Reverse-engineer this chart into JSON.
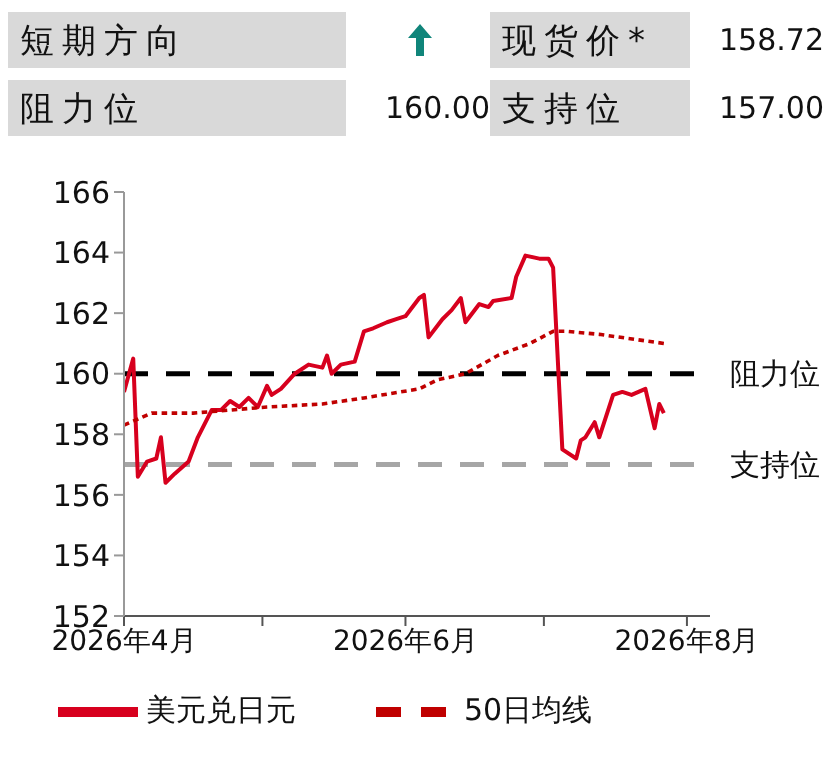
{
  "chart_data": [
    {
      "type": "other",
      "annotations": [
        "短期方向",
        "现货价*",
        "158.72",
        "阻力位",
        "160.00",
        "支持位",
        "157.00"
      ]
    },
    {
      "type": "line",
      "ylim": [
        152,
        166
      ],
      "yticks": [
        152,
        154,
        156,
        158,
        160,
        162,
        164,
        166
      ],
      "xlim": [
        "2026-04-01",
        "2026-08-06"
      ],
      "xticks": [
        {
          "value": "2026-04-01",
          "label": "2026年4月"
        },
        {
          "value": "2026-05-01",
          "label": null
        },
        {
          "value": "2026-06-01",
          "label": "2026年6月"
        },
        {
          "value": "2026-07-01",
          "label": null
        },
        {
          "value": "2026-08-01",
          "label": "2026年8月"
        }
      ],
      "grid": false,
      "legend": "bottom",
      "marker": "none",
      "series": [
        {
          "name": "美元兑日元",
          "color": "#d7001e",
          "line_style": "solid",
          "x": [
            "2026-04-01",
            "2026-04-03",
            "2026-04-04",
            "2026-04-06",
            "2026-04-08",
            "2026-04-09",
            "2026-04-10",
            "2026-04-12",
            "2026-04-15",
            "2026-04-17",
            "2026-04-20",
            "2026-04-22",
            "2026-04-24",
            "2026-04-26",
            "2026-04-28",
            "2026-04-30",
            "2026-05-02",
            "2026-05-03",
            "2026-05-05",
            "2026-05-08",
            "2026-05-11",
            "2026-05-14",
            "2026-05-15",
            "2026-05-16",
            "2026-05-18",
            "2026-05-21",
            "2026-05-23",
            "2026-05-25",
            "2026-05-28",
            "2026-05-30",
            "2026-06-01",
            "2026-06-04",
            "2026-06-05",
            "2026-06-06",
            "2026-06-09",
            "2026-06-11",
            "2026-06-13",
            "2026-06-14",
            "2026-06-17",
            "2026-06-19",
            "2026-06-20",
            "2026-06-24",
            "2026-06-25",
            "2026-06-27",
            "2026-06-30",
            "2026-07-02",
            "2026-07-03",
            "2026-07-05",
            "2026-07-08",
            "2026-07-09",
            "2026-07-10",
            "2026-07-12",
            "2026-07-13",
            "2026-07-16",
            "2026-07-18",
            "2026-07-20",
            "2026-07-23",
            "2026-07-25",
            "2026-07-26",
            "2026-07-27"
          ],
          "values": [
            159.4,
            160.5,
            156.6,
            157.1,
            157.2,
            157.9,
            156.4,
            156.7,
            157.1,
            157.9,
            158.8,
            158.8,
            159.1,
            158.9,
            159.2,
            158.9,
            159.6,
            159.3,
            159.5,
            160.0,
            160.3,
            160.2,
            160.6,
            160.0,
            160.3,
            160.4,
            161.4,
            161.5,
            161.7,
            161.8,
            161.9,
            162.5,
            162.6,
            161.2,
            161.8,
            162.1,
            162.5,
            161.7,
            162.3,
            162.2,
            162.4,
            162.5,
            163.2,
            163.9,
            163.8,
            163.8,
            163.5,
            157.5,
            157.2,
            157.8,
            157.9,
            158.4,
            157.9,
            159.3,
            159.4,
            159.3,
            159.5,
            158.2,
            159.0,
            158.7
          ]
        },
        {
          "name": "50日均线",
          "color": "#c00000",
          "line_style": "dashed",
          "x": [
            "2026-04-01",
            "2026-04-04",
            "2026-04-07",
            "2026-04-16",
            "2026-05-02",
            "2026-05-14",
            "2026-05-23",
            "2026-06-04",
            "2026-06-08",
            "2026-06-14",
            "2026-06-21",
            "2026-06-28",
            "2026-07-03",
            "2026-07-06",
            "2026-07-13",
            "2026-07-27"
          ],
          "values": [
            158.3,
            158.5,
            158.7,
            158.7,
            158.9,
            159.0,
            159.2,
            159.5,
            159.8,
            160.0,
            160.6,
            161.0,
            161.4,
            161.4,
            161.3,
            161.0
          ]
        }
      ],
      "ref_lines": [
        {
          "axis": "y",
          "value": 160,
          "label": "阻力位",
          "color": "#000000",
          "line_style": "dashed"
        },
        {
          "axis": "y",
          "value": 157,
          "label": "支持位",
          "color": "#a6a6a6",
          "line_style": "dashed"
        }
      ]
    }
  ]
}
